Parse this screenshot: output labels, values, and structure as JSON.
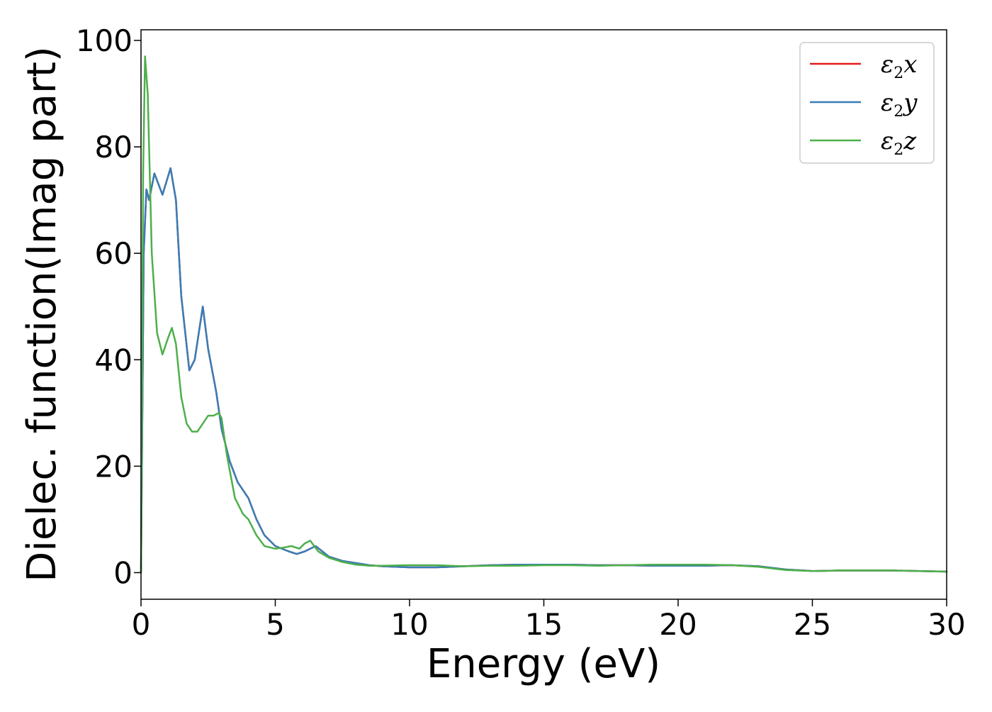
{
  "chart_data": {
    "type": "line",
    "title": "",
    "xlabel": "Energy (eV)",
    "ylabel": "Dielec. function(Imag part)",
    "xlim": [
      0,
      30
    ],
    "ylim": [
      -5,
      102
    ],
    "xticks": [
      "0",
      "5",
      "10",
      "15",
      "20",
      "25",
      "30"
    ],
    "yticks": [
      "0",
      "20",
      "40",
      "60",
      "80",
      "100"
    ],
    "grid": false,
    "legend_position": "top-right",
    "series": [
      {
        "name": "ε2x",
        "legend_main": "ε",
        "legend_sub": "2",
        "legend_axis": "x",
        "color": "#e41a1c",
        "x": [
          0,
          0.1,
          0.2,
          0.3,
          0.5,
          0.8,
          1.1,
          1.3,
          1.5,
          1.8,
          2.0,
          2.3,
          2.5,
          2.8,
          3.0,
          3.3,
          3.6,
          4.0,
          4.3,
          4.6,
          5.0,
          5.5,
          5.8,
          6.1,
          6.5,
          7.0,
          7.5,
          8.0,
          8.5,
          9.0,
          10.0,
          11.0,
          12.0,
          13.0,
          14.0,
          15.0,
          16.0,
          17.0,
          18.0,
          19.0,
          20.0,
          21.0,
          22.0,
          23.0,
          24.0,
          25.0,
          26.0,
          27.0,
          28.0,
          29.0,
          30.0
        ],
        "y": [
          0,
          60,
          72,
          70,
          75,
          71,
          76,
          70,
          52,
          38,
          40,
          50,
          42,
          34,
          27,
          21,
          17,
          14,
          10,
          7,
          5,
          4,
          3.5,
          4,
          5,
          3,
          2.2,
          1.8,
          1.4,
          1.2,
          1.0,
          1.0,
          1.2,
          1.4,
          1.5,
          1.5,
          1.5,
          1.4,
          1.4,
          1.3,
          1.3,
          1.3,
          1.4,
          1.2,
          0.6,
          0.3,
          0.4,
          0.4,
          0.4,
          0.3,
          0.2
        ]
      },
      {
        "name": "ε2y",
        "legend_main": "ε",
        "legend_sub": "2",
        "legend_axis": "y",
        "color": "#377eb8",
        "x": [
          0,
          0.1,
          0.2,
          0.3,
          0.5,
          0.8,
          1.1,
          1.3,
          1.5,
          1.8,
          2.0,
          2.3,
          2.5,
          2.8,
          3.0,
          3.3,
          3.6,
          4.0,
          4.3,
          4.6,
          5.0,
          5.5,
          5.8,
          6.1,
          6.5,
          7.0,
          7.5,
          8.0,
          8.5,
          9.0,
          10.0,
          11.0,
          12.0,
          13.0,
          14.0,
          15.0,
          16.0,
          17.0,
          18.0,
          19.0,
          20.0,
          21.0,
          22.0,
          23.0,
          24.0,
          25.0,
          26.0,
          27.0,
          28.0,
          29.0,
          30.0
        ],
        "y": [
          0,
          60,
          72,
          70,
          75,
          71,
          76,
          70,
          52,
          38,
          40,
          50,
          42,
          34,
          27,
          21,
          17,
          14,
          10,
          7,
          5,
          4,
          3.5,
          4,
          5,
          3,
          2.2,
          1.8,
          1.4,
          1.2,
          1.0,
          1.0,
          1.2,
          1.4,
          1.5,
          1.5,
          1.5,
          1.4,
          1.4,
          1.3,
          1.3,
          1.3,
          1.4,
          1.2,
          0.6,
          0.3,
          0.4,
          0.4,
          0.4,
          0.3,
          0.2
        ]
      },
      {
        "name": "ε2z",
        "legend_main": "ε",
        "legend_sub": "2",
        "legend_axis": "z",
        "color": "#4daf4a",
        "x": [
          0,
          0.08,
          0.15,
          0.25,
          0.4,
          0.6,
          0.8,
          1.0,
          1.15,
          1.3,
          1.5,
          1.7,
          1.9,
          2.1,
          2.3,
          2.5,
          2.7,
          2.9,
          3.0,
          3.2,
          3.5,
          3.8,
          4.0,
          4.3,
          4.6,
          5.0,
          5.3,
          5.6,
          5.9,
          6.1,
          6.3,
          6.6,
          7.0,
          7.5,
          8.0,
          8.5,
          9.0,
          10.0,
          11.0,
          12.0,
          13.0,
          14.0,
          15.0,
          16.0,
          17.0,
          18.0,
          19.0,
          20.0,
          21.0,
          22.0,
          23.0,
          24.0,
          25.0,
          26.0,
          27.0,
          28.0,
          29.0,
          30.0
        ],
        "y": [
          0,
          75,
          97,
          90,
          60,
          45,
          41,
          44,
          46,
          43,
          33,
          28,
          26.5,
          26.5,
          28,
          29.5,
          29.5,
          30,
          29,
          22,
          14,
          11,
          10,
          7,
          5,
          4.5,
          4.7,
          5,
          4.5,
          5.5,
          6,
          4,
          2.8,
          2,
          1.5,
          1.3,
          1.3,
          1.4,
          1.4,
          1.2,
          1.3,
          1.3,
          1.4,
          1.4,
          1.3,
          1.4,
          1.5,
          1.5,
          1.5,
          1.4,
          1.1,
          0.5,
          0.3,
          0.4,
          0.4,
          0.4,
          0.3,
          0.2
        ]
      }
    ]
  }
}
